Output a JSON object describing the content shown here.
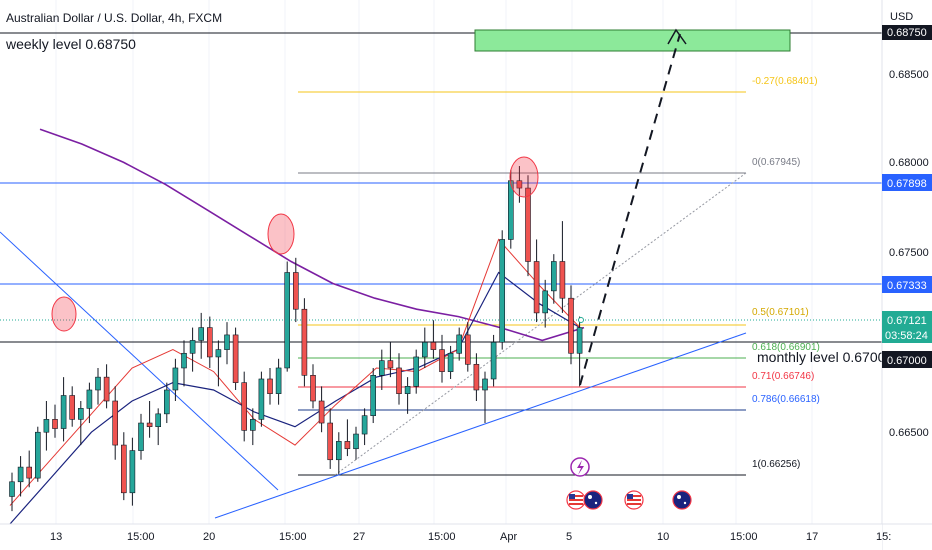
{
  "header": {
    "title": "Australian Dollar / U.S. Dollar, 4h, FXCM",
    "currency": "USD"
  },
  "annotations": {
    "weekly_level": "weekly level 0.68750",
    "monthly_level": "monthly level 0.67000"
  },
  "price_axis": {
    "tick_labels": [
      "0.68500",
      "0.68000",
      "0.67500",
      "0.66500"
    ],
    "tags": [
      {
        "text": "0.68750",
        "color": "#131722"
      },
      {
        "text": "0.67898",
        "color": "#2962ff"
      },
      {
        "text": "0.67333",
        "color": "#2962ff"
      },
      {
        "text": "0.67121",
        "color": "#22ab94"
      },
      {
        "text": "03:58:24",
        "color": "#22ab94"
      },
      {
        "text": "0.67000",
        "color": "#131722"
      }
    ]
  },
  "time_axis": {
    "labels": [
      "13",
      "15:00",
      "20",
      "15:00",
      "27",
      "15:00",
      "Apr",
      "5",
      "10",
      "15:00",
      "17",
      "15:"
    ]
  },
  "fibonacci": [
    {
      "text": "-0.27(0.68401)",
      "color": "#f5c518"
    },
    {
      "text": "0(0.67945)",
      "color": "#787b86"
    },
    {
      "text": "0.5(0.67101)",
      "color": "#f5c518"
    },
    {
      "text": "0.618(0.66901)",
      "color": "#4caf50"
    },
    {
      "text": "0.71(0.66746)",
      "color": "#f23645"
    },
    {
      "text": "0.786(0.66618)",
      "color": "#2962ff"
    },
    {
      "text": "1(0.66256)",
      "color": "#131722"
    }
  ],
  "event_icons": [
    "lightning-icon",
    "us-flag-icon",
    "au-flag-icon",
    "us-flag-icon",
    "au-flag-icon"
  ],
  "colors": {
    "up": "#26a69a",
    "down": "#ef5350",
    "ma_long": "#7b1fa2",
    "ma_mid": "#1a237e",
    "ma_short": "#e53935",
    "level_line": "#2962ff",
    "target_zone": "#8ce99a"
  },
  "chart_data": {
    "type": "candlestick",
    "symbol": "AUDUSD",
    "timeframe": "4h",
    "y_range": [
      0.6605,
      0.6885
    ],
    "horizontal_levels": [
      0.6875,
      0.67898,
      0.67333,
      0.67
    ],
    "target_zone": {
      "low": 0.6872,
      "high": 0.6876
    },
    "candles": [
      [
        0.662,
        0.6633,
        0.6612,
        0.6628
      ],
      [
        0.6628,
        0.6642,
        0.662,
        0.6636
      ],
      [
        0.6636,
        0.6645,
        0.6625,
        0.663
      ],
      [
        0.663,
        0.6658,
        0.6628,
        0.6655
      ],
      [
        0.6655,
        0.6672,
        0.6645,
        0.6662
      ],
      [
        0.6662,
        0.667,
        0.6652,
        0.6657
      ],
      [
        0.6657,
        0.6685,
        0.665,
        0.6675
      ],
      [
        0.6675,
        0.668,
        0.6658,
        0.6662
      ],
      [
        0.6662,
        0.6672,
        0.6648,
        0.6668
      ],
      [
        0.6668,
        0.6682,
        0.666,
        0.6678
      ],
      [
        0.6678,
        0.669,
        0.667,
        0.6685
      ],
      [
        0.6685,
        0.6692,
        0.6668,
        0.6672
      ],
      [
        0.6672,
        0.668,
        0.664,
        0.6648
      ],
      [
        0.6648,
        0.6655,
        0.6618,
        0.6622
      ],
      [
        0.6622,
        0.6652,
        0.6615,
        0.6645
      ],
      [
        0.6645,
        0.6665,
        0.664,
        0.666
      ],
      [
        0.666,
        0.6672,
        0.6652,
        0.6658
      ],
      [
        0.6658,
        0.6668,
        0.6648,
        0.6665
      ],
      [
        0.6665,
        0.6682,
        0.666,
        0.6678
      ],
      [
        0.6678,
        0.6695,
        0.6672,
        0.669
      ],
      [
        0.669,
        0.6705,
        0.668,
        0.6698
      ],
      [
        0.6698,
        0.6712,
        0.6688,
        0.6705
      ],
      [
        0.6705,
        0.672,
        0.6695,
        0.6712
      ],
      [
        0.6712,
        0.6718,
        0.669,
        0.6696
      ],
      [
        0.6696,
        0.6705,
        0.668,
        0.67
      ],
      [
        0.67,
        0.6715,
        0.6692,
        0.6708
      ],
      [
        0.6708,
        0.6712,
        0.6678,
        0.6682
      ],
      [
        0.6682,
        0.6688,
        0.665,
        0.6656
      ],
      [
        0.6656,
        0.6668,
        0.6648,
        0.6662
      ],
      [
        0.6662,
        0.6688,
        0.6658,
        0.6684
      ],
      [
        0.6684,
        0.669,
        0.667,
        0.6676
      ],
      [
        0.6676,
        0.6695,
        0.667,
        0.669
      ],
      [
        0.669,
        0.6748,
        0.6688,
        0.6742
      ],
      [
        0.6742,
        0.675,
        0.6715,
        0.6722
      ],
      [
        0.6722,
        0.6728,
        0.668,
        0.6686
      ],
      [
        0.6686,
        0.6692,
        0.6668,
        0.6672
      ],
      [
        0.6672,
        0.668,
        0.6655,
        0.666
      ],
      [
        0.666,
        0.6668,
        0.6635,
        0.664
      ],
      [
        0.664,
        0.6655,
        0.6632,
        0.665
      ],
      [
        0.665,
        0.6662,
        0.6642,
        0.6646
      ],
      [
        0.6646,
        0.6658,
        0.664,
        0.6654
      ],
      [
        0.6654,
        0.6668,
        0.6648,
        0.6664
      ],
      [
        0.6664,
        0.669,
        0.666,
        0.6686
      ],
      [
        0.6686,
        0.67,
        0.6678,
        0.6694
      ],
      [
        0.6694,
        0.6704,
        0.6685,
        0.669
      ],
      [
        0.669,
        0.6698,
        0.667,
        0.6676
      ],
      [
        0.6676,
        0.6685,
        0.6665,
        0.668
      ],
      [
        0.668,
        0.67,
        0.6676,
        0.6696
      ],
      [
        0.6696,
        0.6712,
        0.669,
        0.6704
      ],
      [
        0.6704,
        0.6716,
        0.6695,
        0.67
      ],
      [
        0.67,
        0.6708,
        0.6682,
        0.6688
      ],
      [
        0.6688,
        0.6702,
        0.6684,
        0.6698
      ],
      [
        0.6698,
        0.6712,
        0.6694,
        0.6708
      ],
      [
        0.6708,
        0.6715,
        0.6688,
        0.6692
      ],
      [
        0.6692,
        0.6698,
        0.6672,
        0.6678
      ],
      [
        0.6678,
        0.6688,
        0.666,
        0.6684
      ],
      [
        0.6684,
        0.6708,
        0.668,
        0.6704
      ],
      [
        0.6704,
        0.6765,
        0.67,
        0.676
      ],
      [
        0.676,
        0.6798,
        0.6755,
        0.6792
      ],
      [
        0.6792,
        0.68,
        0.678,
        0.6788
      ],
      [
        0.6788,
        0.6795,
        0.674,
        0.6748
      ],
      [
        0.6748,
        0.676,
        0.6715,
        0.672
      ],
      [
        0.672,
        0.6738,
        0.6712,
        0.6732
      ],
      [
        0.6732,
        0.6752,
        0.6725,
        0.6748
      ],
      [
        0.6748,
        0.677,
        0.672,
        0.6728
      ],
      [
        0.6728,
        0.6735,
        0.6692,
        0.6698
      ],
      [
        0.6698,
        0.6718,
        0.668,
        0.6712
      ]
    ],
    "sma_long": [
      0.682,
      0.6812,
      0.6802,
      0.679,
      0.6776,
      0.6762,
      0.6748,
      0.6736,
      0.6728,
      0.6722,
      0.6718,
      0.6712,
      0.6705,
      0.6712
    ],
    "ema_mid": [
      0.6605,
      0.663,
      0.6655,
      0.6672,
      0.6682,
      0.6678,
      0.6666,
      0.6658,
      0.6672,
      0.6685,
      0.669,
      0.67,
      0.6742,
      0.6725,
      0.6712
    ],
    "ema_short": [
      0.6615,
      0.664,
      0.6665,
      0.669,
      0.67,
      0.6688,
      0.6662,
      0.6648,
      0.667,
      0.669,
      0.6688,
      0.67,
      0.676,
      0.6735,
      0.6712
    ]
  }
}
